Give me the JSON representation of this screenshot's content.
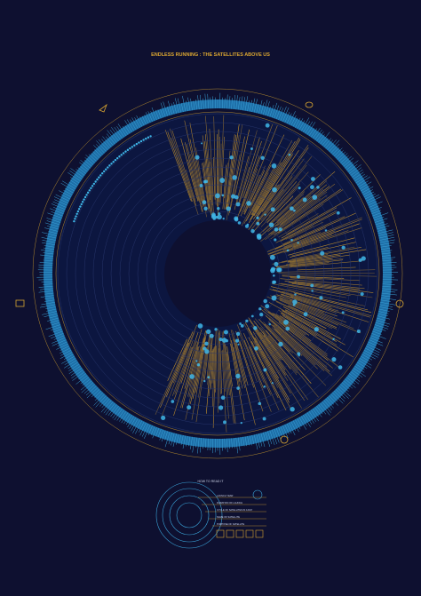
{
  "title": "ENDLESS RUNNING : THE SATELLITES ABOVE US",
  "legend": {
    "title": "HOW TO READ IT",
    "items": [
      "LAUNCH YEAR",
      "DURATION OF LAUNCH",
      "CYCLE OF SATELLITES IN A DAY",
      "NAME OF SATELLITE",
      "PURPOSE OF SATELLITE"
    ]
  }
}
